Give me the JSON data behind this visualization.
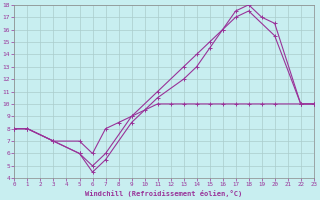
{
  "bg_color": "#c8eef0",
  "grid_color": "#aacccc",
  "line_color": "#993399",
  "xlim": [
    0,
    23
  ],
  "ylim": [
    4,
    18
  ],
  "xticks": [
    0,
    1,
    2,
    3,
    4,
    5,
    6,
    7,
    8,
    9,
    10,
    11,
    12,
    13,
    14,
    15,
    16,
    17,
    18,
    19,
    20,
    21,
    22,
    23
  ],
  "yticks": [
    4,
    5,
    6,
    7,
    8,
    9,
    10,
    11,
    12,
    13,
    14,
    15,
    16,
    17,
    18
  ],
  "line1_x": [
    0,
    1,
    3,
    5,
    6,
    7,
    8,
    9,
    10,
    11,
    12,
    13,
    14,
    15,
    16,
    17,
    18,
    19,
    20,
    22,
    23
  ],
  "line1_y": [
    8,
    8,
    7,
    7,
    6,
    8,
    8.5,
    9,
    9.5,
    10,
    10,
    10,
    10,
    10,
    10,
    10,
    10,
    10,
    10,
    10,
    10
  ],
  "line2_x": [
    0,
    1,
    3,
    5,
    6,
    7,
    9,
    11,
    13,
    14,
    15,
    16,
    17,
    18,
    20,
    22,
    23
  ],
  "line2_y": [
    8,
    8,
    7,
    6,
    5,
    6,
    9,
    11,
    13,
    14,
    15,
    16,
    17,
    17.5,
    15.5,
    10,
    10
  ],
  "line3_x": [
    0,
    1,
    3,
    5,
    6,
    7,
    9,
    11,
    13,
    14,
    15,
    16,
    17,
    18,
    19,
    20,
    22,
    23
  ],
  "line3_y": [
    8,
    8,
    7,
    6,
    4.5,
    5.5,
    8.5,
    10.5,
    12,
    13,
    14.5,
    16,
    17.5,
    18,
    17,
    16.5,
    10,
    10
  ],
  "xlabel": "Windchill (Refroidissement éolien,°C)",
  "linewidth": 0.8,
  "markersize": 3
}
